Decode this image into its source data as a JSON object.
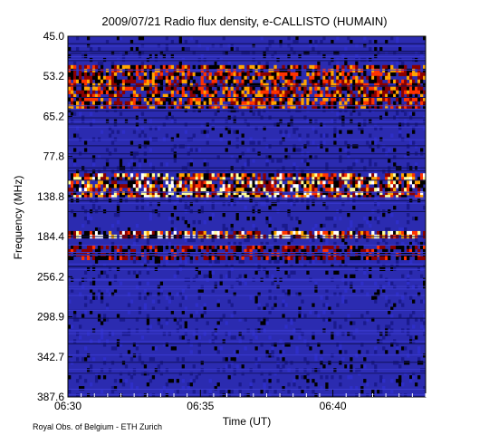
{
  "chart_data": {
    "type": "heatmap",
    "title": "2009/07/21  Radio flux density, e-CALLISTO (HUMAIN)",
    "xlabel": "Time (UT)",
    "ylabel": "Frequency (MHz)",
    "x_ticks": [
      "06:30",
      "06:35",
      "06:40"
    ],
    "x_tick_minutes": [
      0,
      5,
      10
    ],
    "x_range_minutes": [
      0,
      13.5
    ],
    "y_ticks": [
      "45.0",
      "53.2",
      "65.2",
      "77.8",
      "138.8",
      "184.4",
      "256.2",
      "298.9",
      "342.7",
      "387.6"
    ],
    "footer": "Royal Obs. of Belgium - ETH Zurich",
    "colormap": [
      "#000000",
      "#1a1a8c",
      "#2e2ec8",
      "#8b0000",
      "#ff3300",
      "#ffa500",
      "#ffff99",
      "#ffffff"
    ],
    "background_color": "#2b2bb0",
    "features": [
      {
        "band": [
          0.08,
          0.2
        ],
        "intensity": 0.7,
        "description_hidden": false
      },
      {
        "band": [
          0.38,
          0.45
        ],
        "intensity": 0.85
      },
      {
        "band": [
          0.545,
          0.555
        ],
        "intensity": 1.0
      },
      {
        "band": [
          0.58,
          0.62
        ],
        "intensity": 0.55
      }
    ]
  }
}
